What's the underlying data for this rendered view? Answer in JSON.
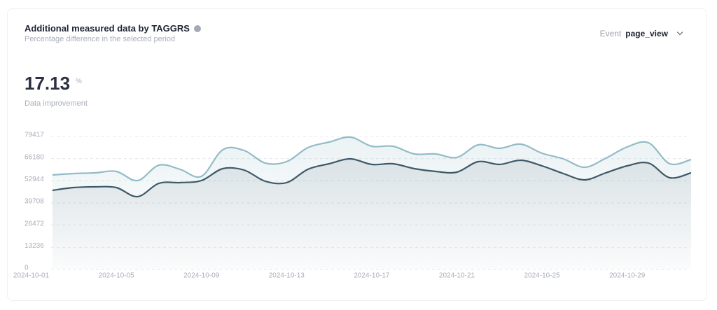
{
  "title": "Additional measured data by TAGGRS",
  "subtitle": "Percentage difference in the selected period",
  "event_label": "Event",
  "event_value": "page_view",
  "metric": {
    "value": 17.13,
    "unit": "%",
    "label": "Data improvement"
  },
  "chart_data": {
    "type": "line",
    "categories": [
      "2024-10-01",
      null,
      null,
      null,
      "2024-10-05",
      null,
      null,
      null,
      "2024-10-09",
      null,
      null,
      null,
      "2024-10-13",
      null,
      null,
      null,
      "2024-10-17",
      null,
      null,
      null,
      "2024-10-21",
      null,
      null,
      null,
      "2024-10-25",
      null,
      null,
      null,
      "2024-10-29",
      null,
      null,
      null
    ],
    "series": [
      {
        "color": "#93bcc7",
        "values": [
          null,
          56427,
          57263,
          57681,
          58517,
          53083,
          62278,
          59770,
          55590,
          71474,
          71056,
          63533,
          64369,
          72728,
          76072,
          78998,
          73564,
          73564,
          68966,
          68966,
          66876,
          74400,
          72310,
          74818,
          69384,
          66040,
          61024,
          66458,
          73146,
          75654,
          63115,
          65622
        ]
      },
      {
        "color": "#3f5868",
        "values": [
          null,
          47233,
          48905,
          49323,
          48905,
          43471,
          51413,
          51831,
          53083,
          60188,
          59352,
          52665,
          51831,
          59770,
          63115,
          66040,
          62697,
          63115,
          60188,
          58517,
          58099,
          64369,
          62697,
          65205,
          61861,
          57263,
          53501,
          57681,
          61861,
          63533,
          54756,
          57681
        ]
      }
    ],
    "ylim": [
      0,
      79417
    ],
    "yticks": [
      0,
      13236,
      26472,
      39708,
      52944,
      66180,
      79417
    ],
    "grid": true
  }
}
